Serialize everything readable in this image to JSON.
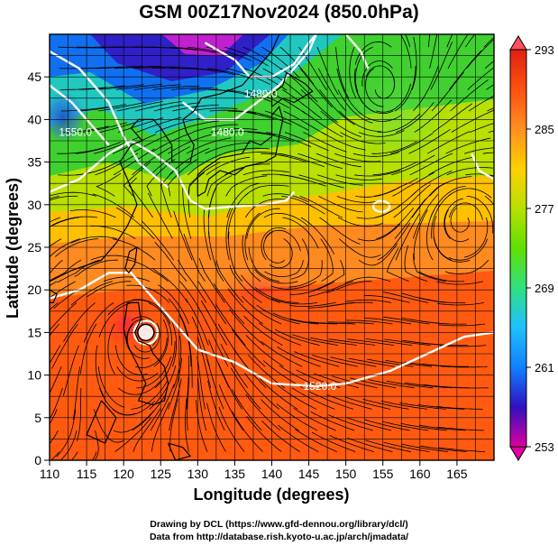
{
  "title": "GSM 00Z17Nov2024 (850.0hPa)",
  "credits": {
    "line1": "Drawing by DCL (https://www.gfd-dennou.org/library/dcl/)",
    "line2": "Data from http://database.rish.kyoto-u.ac.jp/arch/jmadata/"
  },
  "chart_data": {
    "type": "heatmap",
    "variable": "temperature with wind streamlines and geopotential height contours",
    "xlabel": "Longitude (degrees)",
    "ylabel": "Latitude  (degrees)",
    "xlim": [
      110,
      170
    ],
    "ylim": [
      0,
      50
    ],
    "x_ticks": [
      110,
      115,
      120,
      125,
      130,
      135,
      140,
      145,
      150,
      155,
      160,
      165
    ],
    "y_ticks": [
      0,
      5,
      10,
      15,
      20,
      25,
      30,
      35,
      40,
      45
    ],
    "grid": true,
    "colorbar": {
      "min": 253,
      "max": 293,
      "ticks": [
        253,
        261,
        269,
        277,
        285,
        293
      ],
      "palette": [
        "#e000a0",
        "#3010c0",
        "#1080ff",
        "#20c0ff",
        "#30e080",
        "#60e000",
        "#b8e000",
        "#ffd000",
        "#ff9020",
        "#ff5010",
        "#e02010"
      ]
    },
    "contour_labels": [
      {
        "text": "1520.0",
        "lon": 146.5,
        "lat": 8.7
      },
      {
        "text": "1480.0",
        "lon": 134.0,
        "lat": 38.5
      },
      {
        "text": "1550.0",
        "lon": 113.5,
        "lat": 38.5
      },
      {
        "text": "1480.0",
        "lon": 138.5,
        "lat": 43.0
      }
    ]
  }
}
